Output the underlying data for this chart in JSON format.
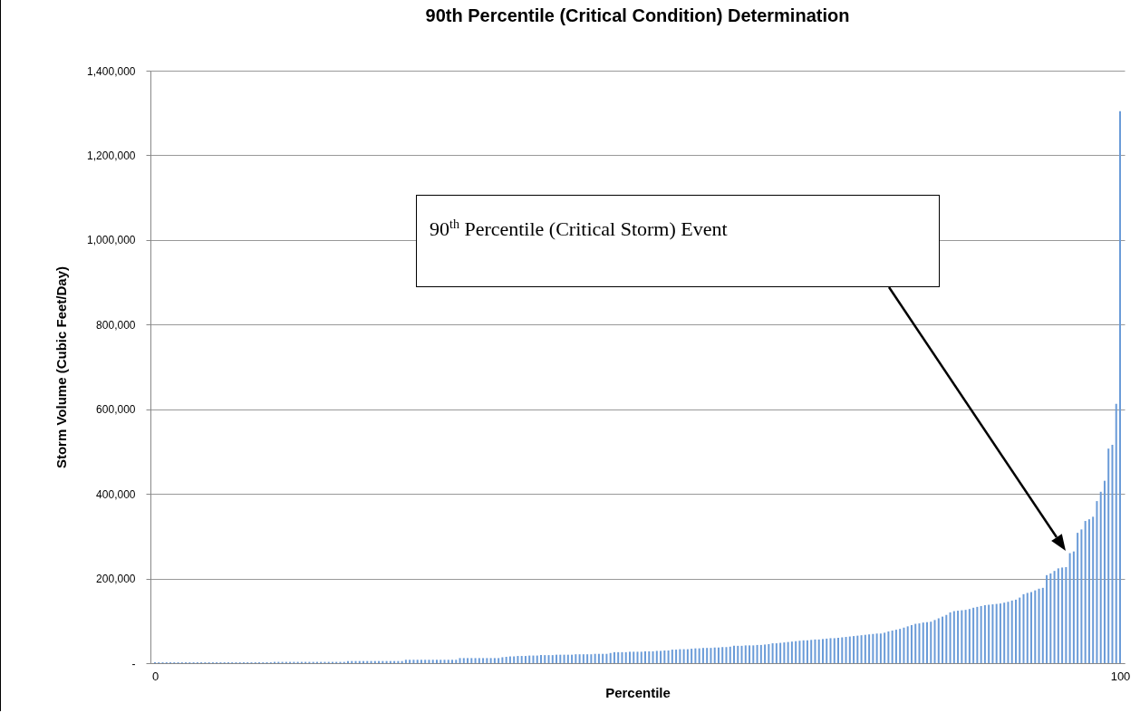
{
  "chart_data": {
    "type": "bar",
    "title": "90th Percentile (Critical Condition)  Determination",
    "xlabel": "Percentile",
    "ylabel": "Storm Volume (Cubic Feet/Day)",
    "xlim": [
      0,
      100
    ],
    "xticks": [
      0,
      100
    ],
    "ylim": [
      0,
      1400000
    ],
    "yticks": [
      {
        "value": 0,
        "label": "-"
      },
      {
        "value": 200000,
        "label": "200,000"
      },
      {
        "value": 400000,
        "label": "400,000"
      },
      {
        "value": 600000,
        "label": "600,000"
      },
      {
        "value": 800000,
        "label": "800,000"
      },
      {
        "value": 1000000,
        "label": "1,000,000"
      },
      {
        "value": 1200000,
        "label": "1,200,000"
      },
      {
        "value": 1400000,
        "label": "1,400,000"
      }
    ],
    "grid": "y",
    "color": "#6a9bd8",
    "annotations": [
      "90$^{th}$ Percentile (Critical Storm) Event"
    ],
    "x": [
      0,
      0.4,
      0.8,
      1.2,
      1.6,
      2,
      2.4,
      2.8,
      3.2,
      3.6,
      4,
      4.4,
      4.8,
      5.2,
      5.6,
      6,
      6.4,
      6.8,
      7.2,
      7.6,
      8,
      8.4,
      8.8,
      9.2,
      9.6,
      10,
      10.4,
      10.8,
      11.2,
      11.6,
      12,
      12.4,
      12.8,
      13.2,
      13.6,
      14,
      14.4,
      14.8,
      15.2,
      15.6,
      16,
      16.4,
      16.8,
      17.2,
      17.6,
      18,
      18.4,
      18.8,
      19.2,
      19.6,
      20,
      20.4,
      20.8,
      21.2,
      21.6,
      22,
      22.4,
      22.8,
      23.2,
      23.6,
      24,
      24.4,
      24.8,
      25.2,
      25.6,
      26,
      26.4,
      26.8,
      27.2,
      27.6,
      28,
      28.4,
      28.8,
      29.2,
      29.6,
      30,
      30.4,
      30.8,
      31.2,
      31.6,
      32,
      32.4,
      32.8,
      33.2,
      33.6,
      34,
      34.4,
      34.8,
      35.2,
      35.6,
      36,
      36.4,
      36.8,
      37.2,
      37.6,
      38,
      38.4,
      38.8,
      39.2,
      39.6,
      40,
      40.4,
      40.8,
      41.2,
      41.6,
      42,
      42.4,
      42.8,
      43.2,
      43.6,
      44,
      44.4,
      44.8,
      45.2,
      45.6,
      46,
      46.4,
      46.8,
      47.2,
      47.6,
      48,
      48.4,
      48.8,
      49.2,
      49.6,
      50,
      50.4,
      50.8,
      51.2,
      51.6,
      52,
      52.4,
      52.8,
      53.2,
      53.6,
      54,
      54.4,
      54.8,
      55.2,
      55.6,
      56,
      56.4,
      56.8,
      57.2,
      57.6,
      58,
      58.4,
      58.8,
      59.2,
      59.6,
      60,
      60.4,
      60.8,
      61.2,
      61.6,
      62,
      62.4,
      62.8,
      63.2,
      63.6,
      64,
      64.4,
      64.8,
      65.2,
      65.6,
      66,
      66.4,
      66.8,
      67.2,
      67.6,
      68,
      68.4,
      68.8,
      69.2,
      69.6,
      70,
      70.4,
      70.8,
      71.2,
      71.6,
      72,
      72.4,
      72.8,
      73.2,
      73.6,
      74,
      74.4,
      74.8,
      75.2,
      75.6,
      76,
      76.4,
      76.8,
      77.2,
      77.6,
      78,
      78.4,
      78.8,
      79.2,
      79.6,
      80,
      80.4,
      80.8,
      81.2,
      81.6,
      82,
      82.4,
      82.8,
      83.2,
      83.6,
      84,
      84.4,
      84.8,
      85.2,
      85.6,
      86,
      86.4,
      86.8,
      87.2,
      87.6,
      88,
      88.4,
      88.8,
      89.2,
      89.6,
      90,
      90.4,
      90.8,
      91.2,
      91.6,
      92,
      92.4,
      92.8,
      93.2,
      93.6,
      94,
      94.4,
      94.8,
      95.2,
      95.6,
      96,
      96.4,
      96.8,
      97.2,
      97.6,
      98,
      98.4,
      98.8,
      99.2,
      99.6,
      100
    ],
    "values": [
      2000,
      2000,
      2000,
      2000,
      2000,
      2000,
      2000,
      2000,
      2000,
      2000,
      2000,
      2000,
      2000,
      2000,
      2000,
      2000,
      2000,
      2000,
      2000,
      2000,
      2000,
      2000,
      2000,
      2000,
      2000,
      2000,
      2000,
      2000,
      2000,
      2000,
      2000,
      3000,
      3000,
      3000,
      3000,
      3000,
      3000,
      3000,
      3000,
      3000,
      3000,
      3000,
      3000,
      3000,
      3000,
      3000,
      3000,
      3000,
      3000,
      3000,
      5000,
      5000,
      5000,
      5000,
      5000,
      5000,
      5000,
      5000,
      5000,
      5000,
      5000,
      5000,
      5000,
      5000,
      5000,
      8000,
      8000,
      8000,
      8000,
      8000,
      8000,
      8000,
      8000,
      8000,
      8000,
      8000,
      8000,
      8000,
      8000,
      12000,
      12000,
      12000,
      12000,
      12000,
      12000,
      12000,
      12000,
      12000,
      12000,
      12000,
      14000,
      15000,
      16000,
      16000,
      17000,
      17000,
      17000,
      18000,
      18000,
      18000,
      19000,
      19000,
      19000,
      19000,
      20000,
      20000,
      20000,
      20000,
      20000,
      21000,
      21000,
      21000,
      21000,
      21000,
      22000,
      22000,
      22000,
      22000,
      24000,
      26000,
      26000,
      26000,
      26000,
      27000,
      27000,
      27000,
      27000,
      28000,
      28000,
      28000,
      29000,
      29000,
      30000,
      30000,
      32000,
      32000,
      33000,
      33000,
      33000,
      34000,
      35000,
      35000,
      36000,
      36000,
      36000,
      37000,
      37000,
      38000,
      38000,
      39000,
      41000,
      41000,
      41000,
      42000,
      42000,
      42000,
      43000,
      43000,
      44000,
      45000,
      47000,
      47000,
      48000,
      49000,
      50000,
      51000,
      52000,
      53000,
      54000,
      54000,
      55000,
      56000,
      56000,
      57000,
      58000,
      59000,
      59000,
      60000,
      61000,
      62000,
      63000,
      64000,
      65000,
      66000,
      67000,
      68000,
      69000,
      70000,
      70000,
      72000,
      75000,
      77000,
      79000,
      81000,
      84000,
      87000,
      90000,
      93000,
      94000,
      96000,
      97000,
      98000,
      102000,
      106000,
      110000,
      114000,
      120000,
      123000,
      124000,
      125000,
      126000,
      128000,
      131000,
      133000,
      135000,
      137000,
      138000,
      139000,
      140000,
      141000,
      143000,
      145000,
      148000,
      150000,
      155000,
      163000,
      166000,
      168000,
      172000,
      176000,
      178000,
      208000,
      212000,
      218000,
      224000,
      226000,
      227000,
      260000,
      264000,
      308000,
      316000,
      336000,
      340000,
      346000,
      383000,
      405000,
      431000,
      507000,
      516000,
      613000,
      1304000
    ]
  }
}
